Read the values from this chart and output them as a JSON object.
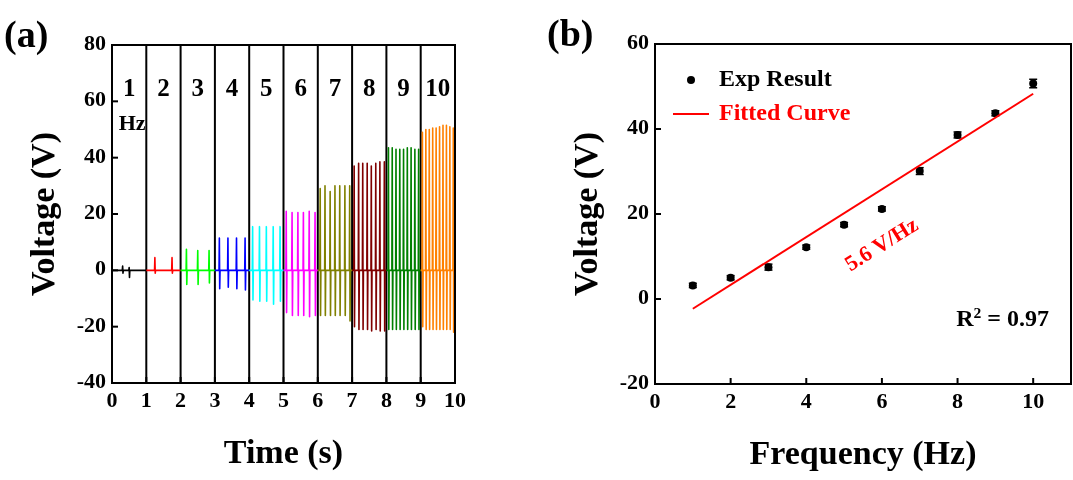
{
  "chart_data": [
    {
      "type": "line",
      "title": "(a)",
      "xlabel": "Time (s)",
      "ylabel": "Voltage (V)",
      "xlim": [
        0,
        10
      ],
      "xticks": [
        0,
        1,
        2,
        3,
        4,
        5,
        6,
        7,
        8,
        9,
        10
      ],
      "ylim": [
        -40,
        80
      ],
      "yticks": [
        -40,
        -20,
        0,
        20,
        40,
        60,
        80
      ],
      "grid": false,
      "legend": false,
      "ref_lines": [
        {
          "axis": "x",
          "value": 1,
          "color": "#000000"
        },
        {
          "axis": "x",
          "value": 2,
          "color": "#000000"
        },
        {
          "axis": "x",
          "value": 3,
          "color": "#000000"
        },
        {
          "axis": "x",
          "value": 4,
          "color": "#000000"
        },
        {
          "axis": "x",
          "value": 5,
          "color": "#000000"
        },
        {
          "axis": "x",
          "value": 6,
          "color": "#000000"
        },
        {
          "axis": "x",
          "value": 7,
          "color": "#000000"
        },
        {
          "axis": "x",
          "value": 8,
          "color": "#000000"
        },
        {
          "axis": "x",
          "value": 9,
          "color": "#000000"
        }
      ],
      "annotations": [
        "1",
        "Hz",
        "2",
        "3",
        "4",
        "5",
        "6",
        "7",
        "8",
        "9",
        "10"
      ],
      "series": [
        {
          "color": "#000000",
          "x": [
            0,
            0.3,
            0.31,
            0.32,
            0.33,
            0.49,
            0.5,
            0.51,
            0.52,
            1
          ],
          "values": [
            0,
            0,
            1.5,
            -1,
            0,
            0,
            1,
            -2.5,
            0,
            0
          ]
        },
        {
          "color": "#ff0000",
          "x": [
            1,
            1.24,
            1.25,
            1.26,
            1.27,
            1.74,
            1.75,
            1.76,
            1.77,
            2
          ],
          "values": [
            0,
            0,
            4.5,
            -1,
            0,
            0,
            4.5,
            -1,
            0,
            0
          ]
        },
        {
          "color": "#00ff00",
          "x": [
            2,
            2.16,
            2.17,
            2.18,
            2.19,
            2.49,
            2.5,
            2.51,
            2.52,
            2.82,
            2.83,
            2.84,
            2.85,
            3
          ],
          "values": [
            0,
            0,
            7.5,
            -5,
            0,
            0,
            7,
            -5,
            0,
            0,
            7,
            -4.5,
            0,
            0
          ]
        },
        {
          "color": "#0000ff",
          "x": [
            3,
            3.12,
            3.13,
            3.14,
            3.15,
            3.37,
            3.38,
            3.39,
            3.4,
            3.62,
            3.63,
            3.64,
            3.65,
            3.87,
            3.88,
            3.89,
            3.9,
            4
          ],
          "values": [
            0,
            0,
            11.5,
            -6.5,
            0,
            0,
            11.5,
            -6,
            0,
            0,
            11.5,
            -6.5,
            0,
            0,
            11.5,
            -7,
            0,
            0
          ]
        },
        {
          "color": "#00ffff",
          "x": [
            4,
            4.09,
            4.1,
            4.11,
            4.12,
            4.29,
            4.3,
            4.31,
            4.32,
            4.49,
            4.5,
            4.51,
            4.52,
            4.69,
            4.7,
            4.71,
            4.72,
            4.89,
            4.9,
            4.91,
            4.92,
            5
          ],
          "values": [
            0,
            0,
            15.5,
            -10.5,
            0,
            0,
            15.5,
            -11,
            0,
            0,
            15.5,
            -11,
            0,
            0,
            15.5,
            -12,
            0,
            0,
            15.5,
            -11,
            0,
            0
          ]
        },
        {
          "color": "#ff00ff",
          "x": [
            5,
            5.07,
            5.08,
            5.09,
            5.1,
            5.24,
            5.25,
            5.26,
            5.27,
            5.41,
            5.42,
            5.43,
            5.44,
            5.57,
            5.58,
            5.59,
            5.6,
            5.74,
            5.75,
            5.76,
            5.77,
            5.91,
            5.92,
            5.93,
            5.94,
            6
          ],
          "values": [
            0,
            0,
            21,
            -15,
            0,
            0,
            20.5,
            -16,
            0,
            0,
            20.5,
            -16,
            0,
            0,
            20.5,
            -16,
            0,
            0,
            21,
            -16.5,
            0,
            0,
            20.5,
            -16,
            0,
            0
          ]
        },
        {
          "color": "#808000",
          "x": [
            6,
            6.06,
            6.07,
            6.08,
            6.09,
            6.2,
            6.21,
            6.22,
            6.23,
            6.35,
            6.36,
            6.37,
            6.38,
            6.49,
            6.5,
            6.51,
            6.52,
            6.63,
            6.64,
            6.65,
            6.66,
            6.78,
            6.79,
            6.8,
            6.81,
            6.92,
            6.93,
            6.94,
            6.95,
            7
          ],
          "values": [
            0,
            0,
            29,
            -16,
            0,
            0,
            30,
            -16,
            0,
            0,
            28,
            -16,
            0,
            0,
            30,
            -16,
            0,
            0,
            30,
            -16,
            0,
            0,
            30,
            -16,
            0,
            0,
            30,
            -18,
            0,
            0
          ]
        },
        {
          "color": "#800000",
          "x": [
            7,
            7.05,
            7.06,
            7.07,
            7.08,
            7.18,
            7.19,
            7.2,
            7.21,
            7.3,
            7.31,
            7.32,
            7.33,
            7.43,
            7.44,
            7.45,
            7.46,
            7.55,
            7.56,
            7.57,
            7.58,
            7.68,
            7.69,
            7.7,
            7.71,
            7.8,
            7.81,
            7.82,
            7.83,
            7.93,
            7.94,
            7.95,
            7.96,
            8
          ],
          "values": [
            0,
            0,
            37,
            -20,
            0,
            0,
            38,
            -21,
            0,
            0,
            38,
            -21,
            0,
            0,
            38,
            -21,
            0,
            0,
            37,
            -21.5,
            0,
            0,
            38,
            -21,
            0,
            0,
            38.5,
            -21.5,
            0,
            0,
            38.5,
            -21.5,
            0,
            0
          ]
        },
        {
          "color": "#008000",
          "x": [
            8,
            8.05,
            8.06,
            8.07,
            8.08,
            8.16,
            8.17,
            8.18,
            8.19,
            8.27,
            8.28,
            8.29,
            8.3,
            8.38,
            8.39,
            8.4,
            8.41,
            8.49,
            8.5,
            8.51,
            8.52,
            8.6,
            8.61,
            8.62,
            8.63,
            8.71,
            8.72,
            8.73,
            8.74,
            8.82,
            8.83,
            8.84,
            8.85,
            8.93,
            8.94,
            8.95,
            8.96,
            9
          ],
          "values": [
            0,
            0,
            43.5,
            -21,
            0,
            0,
            43.5,
            -21,
            0,
            0,
            43,
            -21,
            0,
            0,
            43,
            -21,
            0,
            0,
            43,
            -21,
            0,
            0,
            43.5,
            -21,
            0,
            0,
            43.5,
            -21,
            0,
            0,
            43,
            -21,
            0,
            0,
            43,
            -21,
            0,
            0
          ]
        },
        {
          "color": "#ff8000",
          "x": [
            9,
            9.04,
            9.05,
            9.06,
            9.07,
            9.14,
            9.15,
            9.16,
            9.17,
            9.24,
            9.25,
            9.26,
            9.27,
            9.34,
            9.35,
            9.36,
            9.37,
            9.44,
            9.45,
            9.46,
            9.47,
            9.54,
            9.55,
            9.56,
            9.57,
            9.64,
            9.65,
            9.66,
            9.67,
            9.74,
            9.75,
            9.76,
            9.77,
            9.84,
            9.85,
            9.86,
            9.87,
            9.94,
            9.95,
            9.96,
            9.97,
            10
          ],
          "values": [
            0,
            0,
            49,
            -20,
            0,
            0,
            50,
            -21,
            0,
            0,
            50,
            -21,
            0,
            0,
            50.5,
            -21,
            0,
            0,
            50.5,
            -21,
            0,
            0,
            51,
            -21,
            0,
            0,
            51.5,
            -21,
            0,
            0,
            51.5,
            -21,
            0,
            0,
            51,
            -21,
            0,
            0,
            50.5,
            -22,
            0,
            0
          ]
        }
      ]
    },
    {
      "type": "scatter",
      "title": "(b)",
      "xlabel": "Frequency (Hz)",
      "ylabel": "Voltage (V)",
      "xlim": [
        0,
        11
      ],
      "xticks": [
        0,
        2,
        4,
        6,
        8,
        10
      ],
      "ylim": [
        -20,
        60
      ],
      "yticks": [
        -20,
        0,
        20,
        40,
        60
      ],
      "grid": false,
      "legend": "top left",
      "annotations": [
        "5.6 V/Hz",
        "R$^{2}$ = 0.97"
      ],
      "series": [
        {
          "name": "Exp Result",
          "marker": "circle",
          "color": "#000000",
          "x": [
            1,
            2,
            3,
            4,
            5,
            6,
            7,
            8,
            9,
            10
          ],
          "values": [
            3.2,
            5,
            7.5,
            12.2,
            17.5,
            21.2,
            30.1,
            38.6,
            43.7,
            50.7
          ],
          "errors": [
            0.5,
            0.5,
            0.7,
            0.5,
            0.5,
            0.5,
            0.8,
            0.7,
            0.6,
            1
          ]
        },
        {
          "type": "line",
          "name": "Fitted Curve",
          "color": "#ff0000",
          "x": [
            1,
            10
          ],
          "values": [
            -2.3,
            48.3
          ]
        }
      ]
    }
  ]
}
